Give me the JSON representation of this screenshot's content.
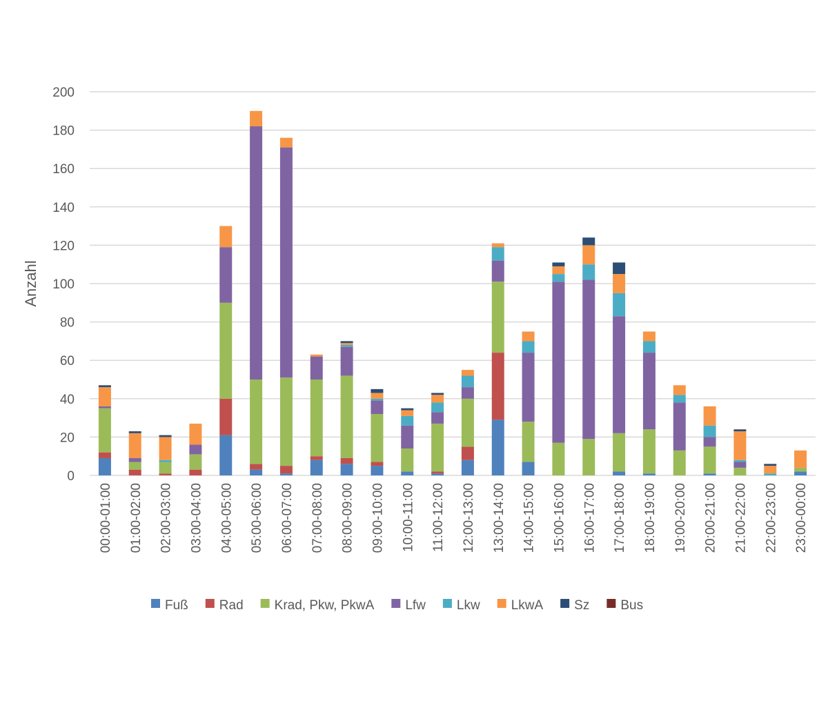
{
  "chart_data": {
    "type": "bar",
    "stacked": true,
    "title": "",
    "xlabel": "",
    "ylabel": "Anzahl",
    "ylim": [
      0,
      200
    ],
    "yticks": [
      0,
      20,
      40,
      60,
      80,
      100,
      120,
      140,
      160,
      180,
      200
    ],
    "grid": true,
    "legend_position": "bottom",
    "categories": [
      "00:00-01:00",
      "01:00-02:00",
      "02:00-03:00",
      "03:00-04:00",
      "04:00-05:00",
      "05:00-06:00",
      "06:00-07:00",
      "07:00-08:00",
      "08:00-09:00",
      "09:00-10:00",
      "10:00-11:00",
      "11:00-12:00",
      "12:00-13:00",
      "13:00-14:00",
      "14:00-15:00",
      "15:00-16:00",
      "16:00-17:00",
      "17:00-18:00",
      "18:00-19:00",
      "19:00-20:00",
      "20:00-21:00",
      "21:00-22:00",
      "22:00-23:00",
      "23:00-00:00"
    ],
    "series": [
      {
        "name": "Fuß",
        "color": "#4f81bd",
        "values": [
          9,
          0,
          0,
          0,
          21,
          3,
          1,
          8,
          6,
          5,
          2,
          1,
          8,
          29,
          7,
          0,
          0,
          2,
          1,
          0,
          1,
          0,
          0,
          2
        ]
      },
      {
        "name": "Rad",
        "color": "#c0504d",
        "values": [
          3,
          3,
          1,
          3,
          19,
          3,
          4,
          2,
          3,
          2,
          0,
          1,
          7,
          35,
          0,
          0,
          0,
          0,
          0,
          0,
          0,
          0,
          0,
          0
        ]
      },
      {
        "name": "Krad, Pkw, PkwA",
        "color": "#9bbb59",
        "values": [
          23,
          4,
          6,
          8,
          50,
          44,
          46,
          40,
          43,
          25,
          12,
          25,
          25,
          37,
          21,
          17,
          19,
          20,
          23,
          13,
          14,
          4,
          0,
          2
        ]
      },
      {
        "name": "Lfw",
        "color": "#8064a2",
        "values": [
          1,
          2,
          0,
          5,
          29,
          132,
          120,
          12,
          15,
          7,
          12,
          6,
          6,
          11,
          36,
          84,
          83,
          61,
          40,
          25,
          5,
          3,
          0,
          0
        ]
      },
      {
        "name": "Lkw",
        "color": "#4bacc6",
        "values": [
          0,
          0,
          1,
          0,
          0,
          0,
          0,
          0,
          1,
          1,
          5,
          5,
          6,
          7,
          6,
          4,
          8,
          12,
          6,
          4,
          6,
          1,
          1,
          0
        ]
      },
      {
        "name": "LkwA",
        "color": "#f79646",
        "values": [
          10,
          13,
          12,
          11,
          11,
          8,
          5,
          1,
          1,
          3,
          3,
          4,
          3,
          2,
          5,
          4,
          10,
          10,
          5,
          5,
          10,
          15,
          4,
          9
        ]
      },
      {
        "name": "Sz",
        "color": "#2c4d75",
        "values": [
          1,
          1,
          1,
          0,
          0,
          0,
          0,
          0,
          1,
          2,
          1,
          1,
          0,
          0,
          0,
          2,
          4,
          6,
          0,
          0,
          0,
          1,
          1,
          0
        ]
      },
      {
        "name": "Bus",
        "color": "#772c2a",
        "values": [
          0,
          0,
          0,
          0,
          0,
          0,
          0,
          0,
          0,
          0,
          0,
          0,
          0,
          0,
          0,
          0,
          0,
          0,
          0,
          0,
          0,
          0,
          0,
          0
        ]
      }
    ]
  }
}
